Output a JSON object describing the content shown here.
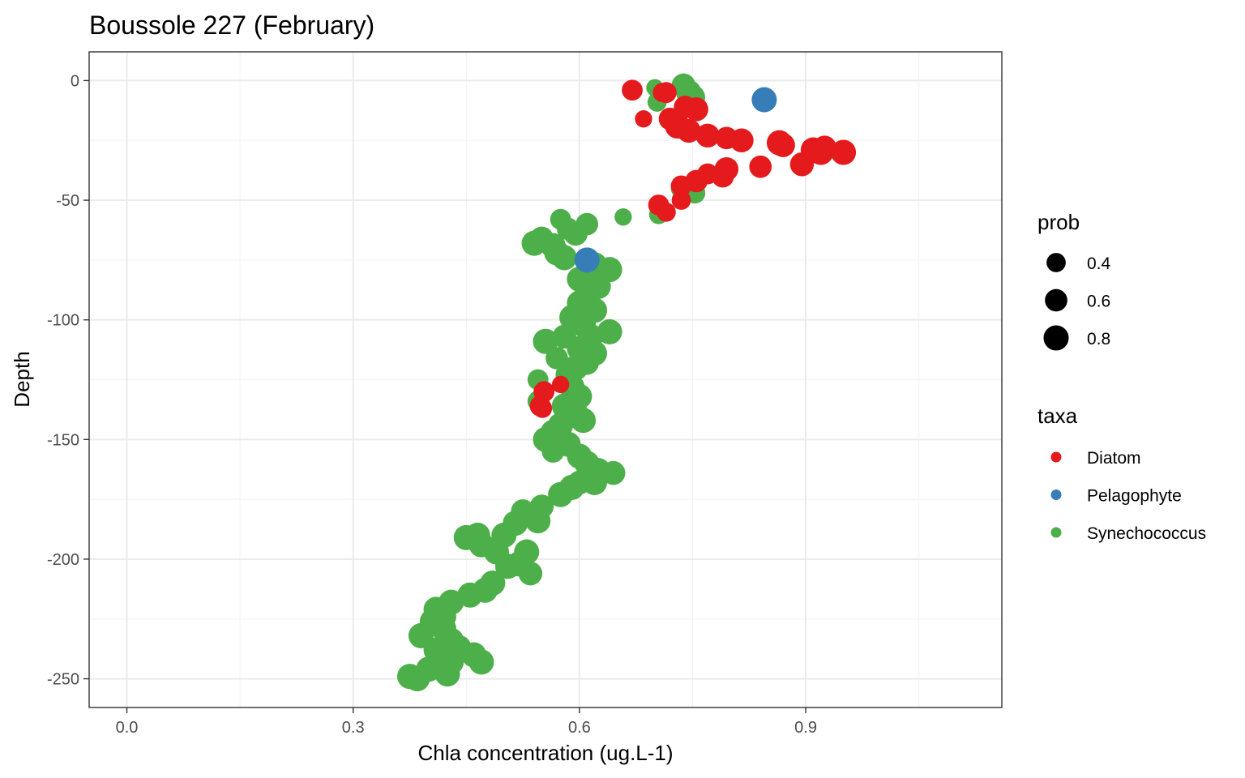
{
  "chart_data": {
    "type": "scatter",
    "title": "Boussole 227 (February)",
    "xlabel": "Chla concentration (ug.L-1)",
    "ylabel": "Depth",
    "xlim": [
      -0.05,
      1.16
    ],
    "ylim": [
      -262,
      12
    ],
    "x_ticks": [
      {
        "value": 0.0,
        "label": "0.0"
      },
      {
        "value": 0.3,
        "label": "0.3"
      },
      {
        "value": 0.6,
        "label": "0.6"
      },
      {
        "value": 0.9,
        "label": "0.9"
      }
    ],
    "y_ticks": [
      {
        "value": 0,
        "label": "0"
      },
      {
        "value": -50,
        "label": "-50"
      },
      {
        "value": -100,
        "label": "-100"
      },
      {
        "value": -150,
        "label": "-150"
      },
      {
        "value": -200,
        "label": "-200"
      },
      {
        "value": -250,
        "label": "-250"
      }
    ],
    "grid": true,
    "legend_position": "right",
    "size_legend": {
      "title": "prob",
      "entries": [
        {
          "label": "0.4",
          "value": 0.4
        },
        {
          "label": "0.6",
          "value": 0.6
        },
        {
          "label": "0.8",
          "value": 0.8
        }
      ]
    },
    "color_legend": {
      "title": "taxa",
      "entries": [
        {
          "label": "Diatom",
          "color": "#e41a1c"
        },
        {
          "label": "Pelagophyte",
          "color": "#377eb8"
        },
        {
          "label": "Synechococcus",
          "color": "#4daf4a"
        }
      ]
    },
    "series": [
      {
        "name": "Synechococcus",
        "color": "#4daf4a",
        "points": [
          [
            0.738,
            -2,
            0.7
          ],
          [
            0.745,
            -5,
            0.8
          ],
          [
            0.75,
            -7,
            0.8
          ],
          [
            0.7,
            -3,
            0.3
          ],
          [
            0.703,
            -9,
            0.4
          ],
          [
            0.735,
            -45,
            0.5
          ],
          [
            0.753,
            -47,
            0.5
          ],
          [
            0.705,
            -56,
            0.4
          ],
          [
            0.658,
            -57,
            0.3
          ],
          [
            0.575,
            -58,
            0.5
          ],
          [
            0.61,
            -60,
            0.6
          ],
          [
            0.585,
            -62,
            0.6
          ],
          [
            0.595,
            -64,
            0.7
          ],
          [
            0.55,
            -66,
            0.7
          ],
          [
            0.54,
            -68,
            0.8
          ],
          [
            0.565,
            -69,
            0.8
          ],
          [
            0.57,
            -72,
            0.8
          ],
          [
            0.58,
            -74,
            0.8
          ],
          [
            0.62,
            -77,
            0.8
          ],
          [
            0.64,
            -79,
            0.8
          ],
          [
            0.6,
            -83,
            0.8
          ],
          [
            0.625,
            -86,
            0.8
          ],
          [
            0.61,
            -89,
            0.8
          ],
          [
            0.6,
            -93,
            0.8
          ],
          [
            0.62,
            -96,
            0.8
          ],
          [
            0.59,
            -99,
            0.8
          ],
          [
            0.605,
            -102,
            0.8
          ],
          [
            0.64,
            -105,
            0.8
          ],
          [
            0.615,
            -107,
            0.8
          ],
          [
            0.58,
            -107,
            0.7
          ],
          [
            0.555,
            -109,
            0.8
          ],
          [
            0.6,
            -112,
            0.8
          ],
          [
            0.62,
            -114,
            0.8
          ],
          [
            0.57,
            -116,
            0.6
          ],
          [
            0.61,
            -118,
            0.7
          ],
          [
            0.595,
            -120,
            0.8
          ],
          [
            0.585,
            -123,
            0.8
          ],
          [
            0.545,
            -125,
            0.5
          ],
          [
            0.59,
            -128,
            0.8
          ],
          [
            0.6,
            -132,
            0.8
          ],
          [
            0.545,
            -134,
            0.5
          ],
          [
            0.58,
            -136,
            0.8
          ],
          [
            0.595,
            -139,
            0.8
          ],
          [
            0.605,
            -142,
            0.8
          ],
          [
            0.575,
            -144,
            0.8
          ],
          [
            0.565,
            -147,
            0.8
          ],
          [
            0.555,
            -150,
            0.8
          ],
          [
            0.585,
            -152,
            0.8
          ],
          [
            0.565,
            -155,
            0.6
          ],
          [
            0.6,
            -157,
            0.8
          ],
          [
            0.61,
            -160,
            0.8
          ],
          [
            0.625,
            -163,
            0.8
          ],
          [
            0.645,
            -164,
            0.7
          ],
          [
            0.62,
            -168,
            0.8
          ],
          [
            0.6,
            -168,
            0.7
          ],
          [
            0.59,
            -170,
            0.8
          ],
          [
            0.575,
            -173,
            0.8
          ],
          [
            0.55,
            -178,
            0.7
          ],
          [
            0.525,
            -180,
            0.7
          ],
          [
            0.54,
            -182,
            0.8
          ],
          [
            0.515,
            -185,
            0.8
          ],
          [
            0.545,
            -184,
            0.8
          ],
          [
            0.5,
            -190,
            0.8
          ],
          [
            0.465,
            -190,
            0.8
          ],
          [
            0.45,
            -191,
            0.8
          ],
          [
            0.47,
            -194,
            0.8
          ],
          [
            0.49,
            -197,
            0.8
          ],
          [
            0.53,
            -197,
            0.8
          ],
          [
            0.52,
            -202,
            0.8
          ],
          [
            0.505,
            -203,
            0.8
          ],
          [
            0.535,
            -206,
            0.7
          ],
          [
            0.485,
            -210,
            0.8
          ],
          [
            0.475,
            -213,
            0.8
          ],
          [
            0.455,
            -215,
            0.8
          ],
          [
            0.43,
            -218,
            0.8
          ],
          [
            0.41,
            -221,
            0.8
          ],
          [
            0.42,
            -224,
            0.8
          ],
          [
            0.405,
            -226,
            0.8
          ],
          [
            0.42,
            -229,
            0.8
          ],
          [
            0.39,
            -232,
            0.8
          ],
          [
            0.43,
            -234,
            0.8
          ],
          [
            0.44,
            -237,
            0.8
          ],
          [
            0.41,
            -238,
            0.8
          ],
          [
            0.46,
            -240,
            0.8
          ],
          [
            0.47,
            -243,
            0.8
          ],
          [
            0.43,
            -243,
            0.8
          ],
          [
            0.4,
            -246,
            0.8
          ],
          [
            0.425,
            -248,
            0.8
          ],
          [
            0.375,
            -249,
            0.8
          ],
          [
            0.385,
            -250,
            0.8
          ]
        ]
      },
      {
        "name": "Diatom",
        "color": "#e41a1c",
        "points": [
          [
            0.67,
            -4,
            0.5
          ],
          [
            0.71,
            -5,
            0.4
          ],
          [
            0.715,
            -5,
            0.5
          ],
          [
            0.74,
            -11,
            0.6
          ],
          [
            0.755,
            -12,
            0.7
          ],
          [
            0.685,
            -16,
            0.3
          ],
          [
            0.72,
            -16,
            0.6
          ],
          [
            0.73,
            -19,
            0.8
          ],
          [
            0.745,
            -21,
            0.7
          ],
          [
            0.77,
            -23,
            0.7
          ],
          [
            0.795,
            -24,
            0.6
          ],
          [
            0.815,
            -25,
            0.7
          ],
          [
            0.865,
            -26,
            0.8
          ],
          [
            0.87,
            -27,
            0.7
          ],
          [
            0.91,
            -29,
            0.8
          ],
          [
            0.925,
            -28,
            0.7
          ],
          [
            0.92,
            -30,
            0.8
          ],
          [
            0.95,
            -30,
            0.8
          ],
          [
            0.895,
            -35,
            0.7
          ],
          [
            0.84,
            -36,
            0.6
          ],
          [
            0.795,
            -37,
            0.7
          ],
          [
            0.77,
            -39,
            0.5
          ],
          [
            0.79,
            -40,
            0.6
          ],
          [
            0.755,
            -42,
            0.6
          ],
          [
            0.735,
            -44,
            0.5
          ],
          [
            0.705,
            -52,
            0.5
          ],
          [
            0.715,
            -55,
            0.4
          ],
          [
            0.735,
            -50,
            0.4
          ],
          [
            0.575,
            -127,
            0.3
          ],
          [
            0.553,
            -130,
            0.5
          ],
          [
            0.548,
            -136,
            0.5
          ],
          [
            0.551,
            -137,
            0.4
          ]
        ]
      },
      {
        "name": "Pelagophyte",
        "color": "#377eb8",
        "points": [
          [
            0.845,
            -8,
            0.8
          ],
          [
            0.61,
            -75,
            0.8
          ]
        ]
      }
    ]
  }
}
